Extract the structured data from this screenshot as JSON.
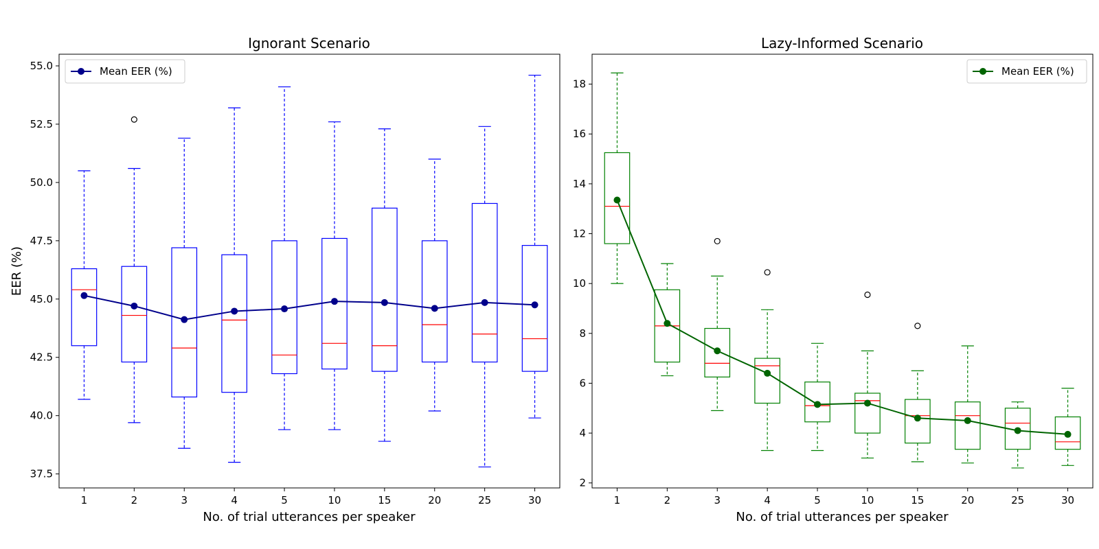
{
  "chart_data": [
    {
      "type": "box",
      "title": "Ignorant Scenario",
      "xlabel": "No. of trial utterances per speaker",
      "ylabel": "EER (%)",
      "categories": [
        "1",
        "2",
        "3",
        "4",
        "5",
        "10",
        "15",
        "20",
        "25",
        "30"
      ],
      "ylim": [
        36.9,
        55.5
      ],
      "yticks": [
        "37.5",
        "40.0",
        "42.5",
        "45.0",
        "47.5",
        "50.0",
        "52.5",
        "55.0"
      ],
      "box_color": "#0000ff",
      "median_color": "#ff0000",
      "boxes": [
        {
          "whisker_low": 40.7,
          "q1": 43.0,
          "median": 45.4,
          "q3": 46.3,
          "whisker_high": 50.5,
          "outliers": []
        },
        {
          "whisker_low": 39.7,
          "q1": 42.3,
          "median": 44.3,
          "q3": 46.4,
          "whisker_high": 50.6,
          "outliers": [
            52.7
          ]
        },
        {
          "whisker_low": 38.6,
          "q1": 40.8,
          "median": 42.9,
          "q3": 47.2,
          "whisker_high": 51.9,
          "outliers": []
        },
        {
          "whisker_low": 38.0,
          "q1": 41.0,
          "median": 44.1,
          "q3": 46.9,
          "whisker_high": 53.2,
          "outliers": []
        },
        {
          "whisker_low": 39.4,
          "q1": 41.8,
          "median": 42.6,
          "q3": 47.5,
          "whisker_high": 54.1,
          "outliers": []
        },
        {
          "whisker_low": 39.4,
          "q1": 42.0,
          "median": 43.1,
          "q3": 47.6,
          "whisker_high": 52.6,
          "outliers": []
        },
        {
          "whisker_low": 38.9,
          "q1": 41.9,
          "median": 43.0,
          "q3": 48.9,
          "whisker_high": 52.3,
          "outliers": []
        },
        {
          "whisker_low": 40.2,
          "q1": 42.3,
          "median": 43.9,
          "q3": 47.5,
          "whisker_high": 51.0,
          "outliers": []
        },
        {
          "whisker_low": 37.8,
          "q1": 42.3,
          "median": 43.5,
          "q3": 49.1,
          "whisker_high": 52.4,
          "outliers": []
        },
        {
          "whisker_low": 39.9,
          "q1": 41.9,
          "median": 43.3,
          "q3": 47.3,
          "whisker_high": 54.6,
          "outliers": []
        }
      ],
      "series": [
        {
          "name": "Mean EER (%)",
          "color": "#00008b",
          "values": [
            45.15,
            44.7,
            44.12,
            44.48,
            44.58,
            44.9,
            44.85,
            44.6,
            44.85,
            44.75
          ]
        }
      ],
      "legend": "top-left",
      "grid": false
    },
    {
      "type": "box",
      "title": "Lazy-Informed Scenario",
      "xlabel": "No. of trial utterances per speaker",
      "ylabel": "",
      "categories": [
        "1",
        "2",
        "3",
        "4",
        "5",
        "10",
        "15",
        "20",
        "25",
        "30"
      ],
      "ylim": [
        1.8,
        19.2
      ],
      "yticks": [
        "2",
        "4",
        "6",
        "8",
        "10",
        "12",
        "14",
        "16",
        "18"
      ],
      "box_color": "#008000",
      "median_color": "#ff0000",
      "boxes": [
        {
          "whisker_low": 10.0,
          "q1": 11.6,
          "median": 13.1,
          "q3": 15.25,
          "whisker_high": 18.45,
          "outliers": []
        },
        {
          "whisker_low": 6.3,
          "q1": 6.85,
          "median": 8.3,
          "q3": 9.75,
          "whisker_high": 10.8,
          "outliers": []
        },
        {
          "whisker_low": 4.9,
          "q1": 6.25,
          "median": 6.8,
          "q3": 8.2,
          "whisker_high": 10.3,
          "outliers": [
            11.7
          ]
        },
        {
          "whisker_low": 3.3,
          "q1": 5.2,
          "median": 6.7,
          "q3": 7.0,
          "whisker_high": 8.95,
          "outliers": [
            10.45
          ]
        },
        {
          "whisker_low": 3.3,
          "q1": 4.45,
          "median": 5.1,
          "q3": 6.05,
          "whisker_high": 7.6,
          "outliers": []
        },
        {
          "whisker_low": 3.0,
          "q1": 4.0,
          "median": 5.3,
          "q3": 5.6,
          "whisker_high": 7.3,
          "outliers": [
            9.55
          ]
        },
        {
          "whisker_low": 2.85,
          "q1": 3.6,
          "median": 4.7,
          "q3": 5.35,
          "whisker_high": 6.5,
          "outliers": [
            8.3
          ]
        },
        {
          "whisker_low": 2.8,
          "q1": 3.35,
          "median": 4.7,
          "q3": 5.25,
          "whisker_high": 7.5,
          "outliers": []
        },
        {
          "whisker_low": 2.6,
          "q1": 3.35,
          "median": 4.4,
          "q3": 5.0,
          "whisker_high": 5.25,
          "outliers": []
        },
        {
          "whisker_low": 2.7,
          "q1": 3.35,
          "median": 3.65,
          "q3": 4.65,
          "whisker_high": 5.8,
          "outliers": []
        }
      ],
      "series": [
        {
          "name": "Mean EER (%)",
          "color": "#006400",
          "values": [
            13.35,
            8.4,
            7.3,
            6.4,
            5.15,
            5.2,
            4.6,
            4.5,
            4.1,
            3.95
          ]
        }
      ],
      "legend": "top-right",
      "grid": false
    }
  ]
}
